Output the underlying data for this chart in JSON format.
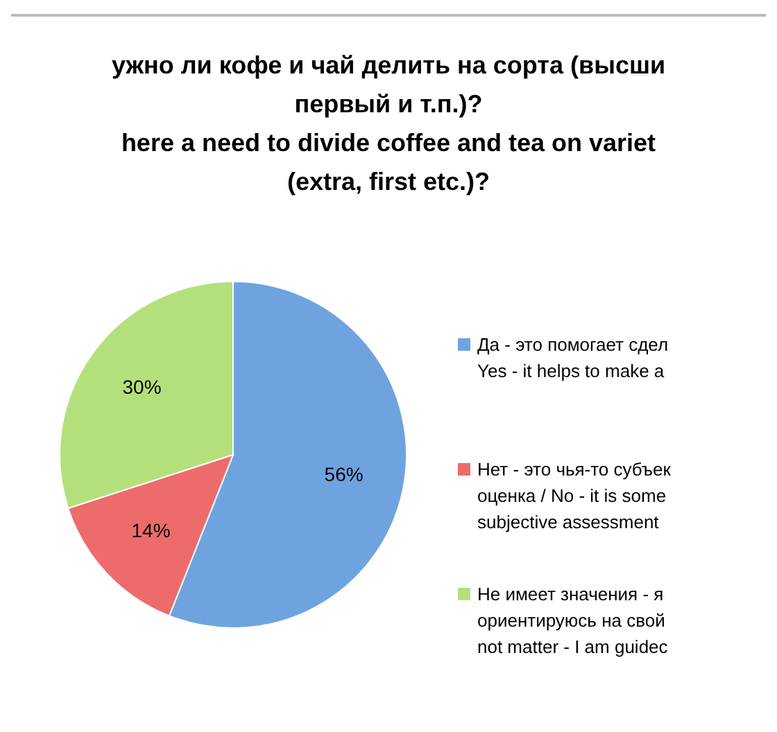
{
  "chart_data": {
    "type": "pie",
    "title": "ужно ли кофе и чай делить на сорта (высши\nпервый и т.п.)?\nhere a need to divide coffee and tea on variet\n(extra, first etc.)?",
    "categories": [
      "Да - это помогает сдел\nYes - it helps to make a",
      "Нет - это чья-то субъек\nоценка / No - it is some\nsubjective assessment",
      "Не имеет значения - я\nориентируюсь на свой\nnot matter - I am guidec"
    ],
    "values": [
      56,
      14,
      30
    ],
    "colors": [
      "#6fa3e0",
      "#ee6b6b",
      "#b4e07c"
    ],
    "value_labels": [
      "56%",
      "14%",
      "30%"
    ],
    "legend": "right"
  }
}
